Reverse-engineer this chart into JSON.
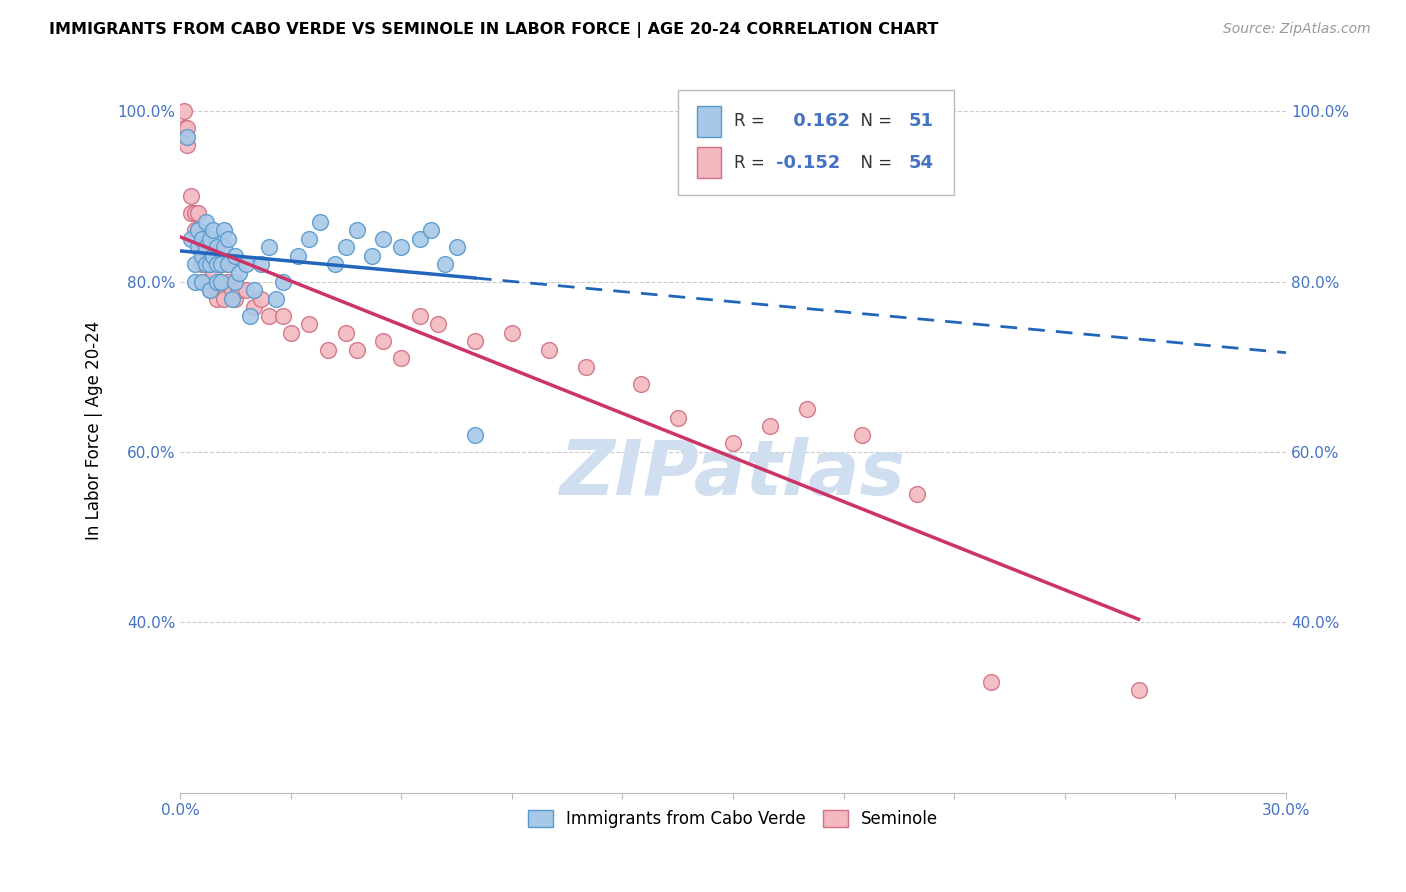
{
  "title": "IMMIGRANTS FROM CABO VERDE VS SEMINOLE IN LABOR FORCE | AGE 20-24 CORRELATION CHART",
  "source": "Source: ZipAtlas.com",
  "ylabel": "In Labor Force | Age 20-24",
  "x_min": 0.0,
  "x_max": 0.3,
  "y_min": 0.2,
  "y_max": 1.05,
  "y_ticks": [
    0.4,
    0.6,
    0.8,
    1.0
  ],
  "cabo_verde_color": "#a8c8e8",
  "cabo_verde_edge": "#5599cc",
  "seminole_color": "#f4b8c0",
  "seminole_edge": "#d07080",
  "trend_cabo_verde_color": "#2266bb",
  "trend_seminole_color": "#cc3366",
  "watermark_color": "#d0dff0",
  "watermark_fontsize": 55,
  "R_cabo": 0.162,
  "N_cabo": 51,
  "R_sem": -0.152,
  "N_sem": 54,
  "cabo_verde_x": [
    0.002,
    0.003,
    0.004,
    0.004,
    0.005,
    0.005,
    0.006,
    0.006,
    0.006,
    0.007,
    0.007,
    0.007,
    0.008,
    0.008,
    0.008,
    0.009,
    0.009,
    0.01,
    0.01,
    0.01,
    0.011,
    0.011,
    0.012,
    0.012,
    0.013,
    0.013,
    0.014,
    0.015,
    0.015,
    0.016,
    0.018,
    0.019,
    0.02,
    0.022,
    0.024,
    0.026,
    0.028,
    0.032,
    0.035,
    0.038,
    0.042,
    0.045,
    0.048,
    0.052,
    0.055,
    0.06,
    0.065,
    0.068,
    0.072,
    0.075,
    0.08
  ],
  "cabo_verde_y": [
    0.97,
    0.85,
    0.82,
    0.8,
    0.84,
    0.86,
    0.8,
    0.83,
    0.85,
    0.87,
    0.82,
    0.84,
    0.79,
    0.82,
    0.85,
    0.83,
    0.86,
    0.8,
    0.82,
    0.84,
    0.8,
    0.82,
    0.84,
    0.86,
    0.82,
    0.85,
    0.78,
    0.8,
    0.83,
    0.81,
    0.82,
    0.76,
    0.79,
    0.82,
    0.84,
    0.78,
    0.8,
    0.83,
    0.85,
    0.87,
    0.82,
    0.84,
    0.86,
    0.83,
    0.85,
    0.84,
    0.85,
    0.86,
    0.82,
    0.84,
    0.62
  ],
  "seminole_x": [
    0.001,
    0.001,
    0.002,
    0.002,
    0.003,
    0.003,
    0.004,
    0.004,
    0.005,
    0.005,
    0.005,
    0.006,
    0.006,
    0.007,
    0.007,
    0.008,
    0.009,
    0.009,
    0.01,
    0.011,
    0.011,
    0.012,
    0.013,
    0.013,
    0.014,
    0.015,
    0.016,
    0.018,
    0.02,
    0.022,
    0.024,
    0.028,
    0.03,
    0.035,
    0.04,
    0.045,
    0.048,
    0.055,
    0.06,
    0.065,
    0.07,
    0.08,
    0.09,
    0.1,
    0.11,
    0.125,
    0.135,
    0.15,
    0.16,
    0.17,
    0.185,
    0.2,
    0.22,
    0.26
  ],
  "seminole_y": [
    1.0,
    0.98,
    0.96,
    0.98,
    0.88,
    0.9,
    0.86,
    0.88,
    0.84,
    0.86,
    0.88,
    0.82,
    0.84,
    0.8,
    0.82,
    0.79,
    0.81,
    0.83,
    0.78,
    0.8,
    0.82,
    0.78,
    0.8,
    0.82,
    0.79,
    0.78,
    0.79,
    0.79,
    0.77,
    0.78,
    0.76,
    0.76,
    0.74,
    0.75,
    0.72,
    0.74,
    0.72,
    0.73,
    0.71,
    0.76,
    0.75,
    0.73,
    0.74,
    0.72,
    0.7,
    0.68,
    0.64,
    0.61,
    0.63,
    0.65,
    0.62,
    0.55,
    0.33,
    0.32
  ]
}
